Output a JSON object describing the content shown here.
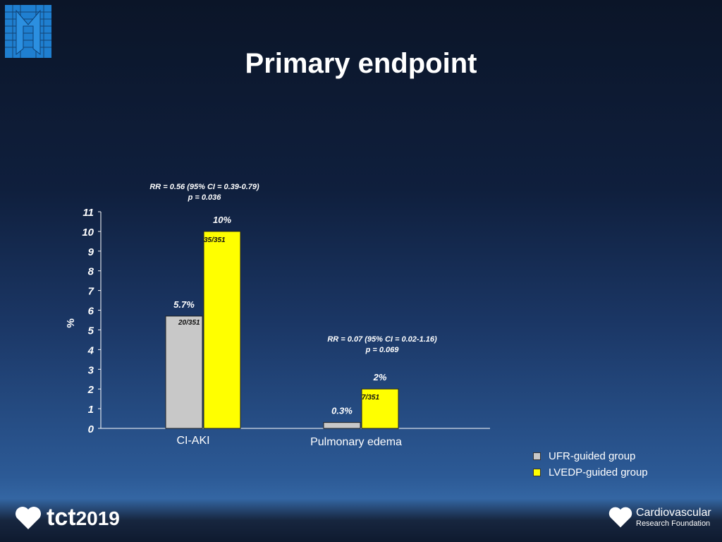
{
  "title": "Primary endpoint",
  "colors": {
    "ufr": "#c8c8c8",
    "lvedp": "#ffff00",
    "text": "#ffffff"
  },
  "logos": {
    "top_left": "M logo",
    "bottom_left": "tct2019",
    "bottom_right": {
      "line1": "Cardiovascular",
      "line2": "Research Foundation"
    }
  },
  "chart_data": {
    "type": "bar",
    "categories": [
      "CI-AKI",
      "Pulmonary edema"
    ],
    "ylabel": "%",
    "ylim": [
      0,
      11
    ],
    "yticks": [
      "0",
      "1",
      "2",
      "3",
      "4",
      "5",
      "6",
      "7",
      "8",
      "9",
      "10",
      "11"
    ],
    "grid": false,
    "legend_position": "bottom-right",
    "series": [
      {
        "name": "UFR-guided group",
        "values": [
          5.7,
          0.3
        ],
        "labels": [
          "5.7%",
          "0.3%"
        ],
        "counts": [
          "20/351",
          ""
        ]
      },
      {
        "name": "LVEDP-guided group",
        "values": [
          10,
          2
        ],
        "labels": [
          "10%",
          "2%"
        ],
        "counts": [
          "35/351",
          "7/351"
        ]
      }
    ],
    "annotations": [
      {
        "line1": "RR = 0.56 (95% CI = 0.39-0.79)",
        "line2": "p = 0.036"
      },
      {
        "line1": "RR = 0.07 (95% CI = 0.02-1.16)",
        "line2": "p = 0.069"
      }
    ]
  }
}
